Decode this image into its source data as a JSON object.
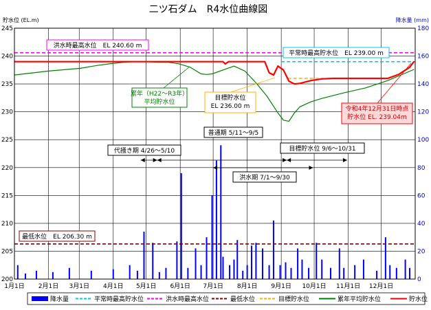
{
  "chart_data": {
    "type": "line",
    "title": "二ツ石ダム　R4水位曲線図",
    "y_left_label": "貯水位 (EL.m)",
    "y_right_label": "降水量 (mm)",
    "y_left_range": [
      200,
      245
    ],
    "y_right_range": [
      0,
      180
    ],
    "y_left_ticks": [
      "245",
      "240",
      "235",
      "230",
      "225",
      "220",
      "215",
      "210",
      "205",
      "200"
    ],
    "y_right_ticks": [
      "180",
      "160",
      "140",
      "120",
      "100",
      "80",
      "60",
      "40",
      "20",
      "0"
    ],
    "x_tick_labels": [
      "1月1日",
      "2月1日",
      "3月1日",
      "4月1日",
      "5月1日",
      "6月1日",
      "7月1日",
      "8月1日",
      "9月1日",
      "10月1日",
      "11月1日",
      "12月1日"
    ],
    "month_starts": [
      0,
      31,
      59,
      90,
      120,
      151,
      181,
      212,
      243,
      273,
      304,
      334
    ],
    "reference_lines": {
      "flood_max": 240.6,
      "normal_max": 239.0,
      "min_level": 206.3,
      "target": 236.0
    },
    "annotations": {
      "flood_max": "洪水時最高水位　EL 240.60 m",
      "normal_max": "平常時最高貯水位　EL 239.00 m",
      "average": [
        "累年（H22～R3年）",
        "平均貯水位"
      ],
      "target": [
        "目標貯水位",
        "EL 236.00 m"
      ],
      "dec31": [
        "令和4年12月31日時点",
        "貯水位 EL. 239.04m"
      ],
      "min_level": "最低水位　EL 206.30 m",
      "normal_period": "普通期 5/11～9/5",
      "planting_period": "代掻き期 4/26～5/10",
      "target_period": "目標貯水位 9/6～10/31",
      "flood_period": "洪水期 7/1～9/30"
    },
    "series": [
      {
        "name": "貯水位",
        "color": "#ff0000",
        "x": [
          0,
          30,
          60,
          80,
          100,
          120,
          150,
          180,
          190,
          192,
          195,
          200,
          210,
          220,
          228,
          232,
          236,
          240,
          245,
          250,
          255,
          260,
          270,
          280,
          290,
          300,
          310,
          320,
          330,
          340,
          350,
          360,
          364
        ],
        "y": [
          239.0,
          239.0,
          239.0,
          239.0,
          239.0,
          239.0,
          239.0,
          239.0,
          239.0,
          238.6,
          239.0,
          239.0,
          239.0,
          239.0,
          239.0,
          237.0,
          236.6,
          238.2,
          237.5,
          235.5,
          235.0,
          235.1,
          235.6,
          235.9,
          236.0,
          236.0,
          236.0,
          236.0,
          236.0,
          236.0,
          236.7,
          238.0,
          239.04
        ]
      },
      {
        "name": "累年平均貯水位",
        "color": "#008000",
        "x": [
          0,
          30,
          60,
          75,
          90,
          100,
          110,
          120,
          130,
          140,
          150,
          160,
          170,
          175,
          180,
          190,
          200,
          210,
          220,
          230,
          240,
          245,
          250,
          255,
          260,
          270,
          280,
          300,
          320,
          340,
          364
        ],
        "y": [
          236.6,
          237.3,
          237.8,
          238.3,
          238.7,
          238.9,
          239.0,
          239.0,
          238.9,
          238.9,
          238.6,
          238.0,
          236.8,
          236.7,
          236.8,
          237.5,
          238.2,
          237.3,
          235.2,
          232.8,
          229.8,
          228.5,
          228.3,
          229.8,
          230.9,
          231.8,
          232.4,
          233.4,
          234.3,
          235.6,
          237.6
        ]
      },
      {
        "name": "降水量",
        "color": "#0000ff",
        "x": [
          3,
          10,
          20,
          35,
          50,
          70,
          90,
          105,
          112,
          118,
          126,
          132,
          138,
          148,
          152,
          158,
          165,
          170,
          175,
          180,
          184,
          188,
          190,
          196,
          200,
          203,
          208,
          212,
          216,
          220,
          226,
          232,
          236,
          242,
          247,
          252,
          258,
          262,
          268,
          275,
          280,
          288,
          296,
          300,
          310,
          318,
          330,
          338,
          342,
          348,
          356,
          360
        ],
        "y": [
          10,
          4,
          6,
          5,
          8,
          6,
          7,
          10,
          6,
          34,
          26,
          5,
          8,
          27,
          76,
          8,
          22,
          10,
          30,
          60,
          85,
          96,
          16,
          10,
          14,
          28,
          6,
          10,
          24,
          26,
          22,
          10,
          42,
          10,
          12,
          8,
          22,
          14,
          8,
          26,
          14,
          8,
          22,
          8,
          10,
          14,
          6,
          30,
          10,
          8,
          14,
          8
        ]
      }
    ],
    "legend": [
      "降水量",
      "平常時最高貯水位",
      "洪水時最高水位",
      "最低水位",
      "目標貯水位",
      "累年平均貯水位",
      "貯水位"
    ]
  }
}
